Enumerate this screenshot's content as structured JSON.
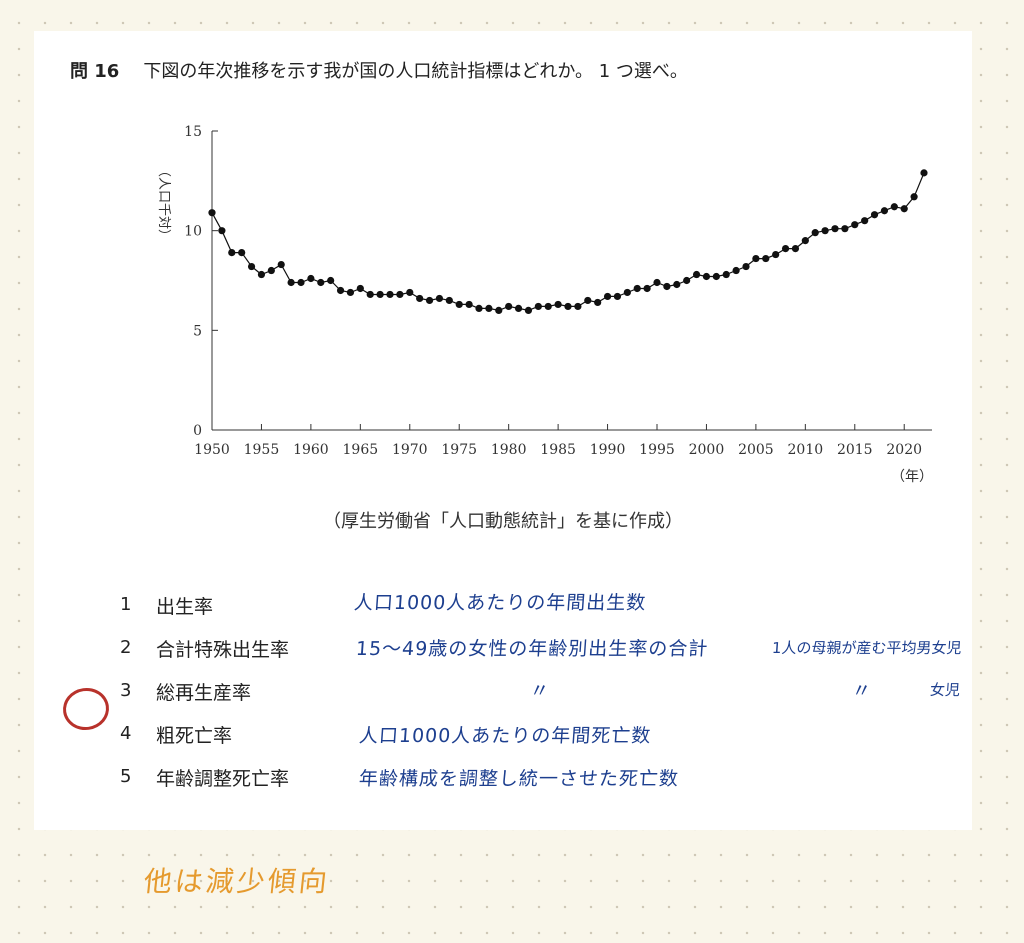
{
  "question": {
    "number": "問 16",
    "text": "下図の年次推移を示す我が国の人口統計指標はどれか。 1 つ選べ。"
  },
  "chart_data": {
    "type": "line",
    "ylabel": "（人口千対）",
    "xlabel": "（年）",
    "xlim": [
      1950,
      2022
    ],
    "ylim": [
      0,
      15
    ],
    "x_ticks": [
      1950,
      1955,
      1960,
      1965,
      1970,
      1975,
      1980,
      1985,
      1990,
      1995,
      2000,
      2005,
      2010,
      2015,
      2020
    ],
    "y_ticks": [
      0,
      5,
      10,
      15
    ],
    "markers": true,
    "grid": false,
    "x": [
      1950,
      1951,
      1952,
      1953,
      1954,
      1955,
      1956,
      1957,
      1958,
      1959,
      1960,
      1961,
      1962,
      1963,
      1964,
      1965,
      1966,
      1967,
      1968,
      1969,
      1970,
      1971,
      1972,
      1973,
      1974,
      1975,
      1976,
      1977,
      1978,
      1979,
      1980,
      1981,
      1982,
      1983,
      1984,
      1985,
      1986,
      1987,
      1988,
      1989,
      1990,
      1991,
      1992,
      1993,
      1994,
      1995,
      1996,
      1997,
      1998,
      1999,
      2000,
      2001,
      2002,
      2003,
      2004,
      2005,
      2006,
      2007,
      2008,
      2009,
      2010,
      2011,
      2012,
      2013,
      2014,
      2015,
      2016,
      2017,
      2018,
      2019,
      2020,
      2021,
      2022
    ],
    "y": [
      10.9,
      10.0,
      8.9,
      8.9,
      8.2,
      7.8,
      8.0,
      8.3,
      7.4,
      7.4,
      7.6,
      7.4,
      7.5,
      7.0,
      6.9,
      7.1,
      6.8,
      6.8,
      6.8,
      6.8,
      6.9,
      6.6,
      6.5,
      6.6,
      6.5,
      6.3,
      6.3,
      6.1,
      6.1,
      6.0,
      6.2,
      6.1,
      6.0,
      6.2,
      6.2,
      6.3,
      6.2,
      6.2,
      6.5,
      6.4,
      6.7,
      6.7,
      6.9,
      7.1,
      7.1,
      7.4,
      7.2,
      7.3,
      7.5,
      7.8,
      7.7,
      7.7,
      7.8,
      8.0,
      8.2,
      8.6,
      8.6,
      8.8,
      9.1,
      9.1,
      9.5,
      9.9,
      10.0,
      10.1,
      10.1,
      10.3,
      10.5,
      10.8,
      11.0,
      11.2,
      11.1,
      11.7,
      12.9
    ]
  },
  "source": "（厚生労働省「人口動態統計」を基に作成）",
  "options": [
    {
      "num": "1",
      "label": "出生率"
    },
    {
      "num": "2",
      "label": "合計特殊出生率"
    },
    {
      "num": "3",
      "label": "総再生産率"
    },
    {
      "num": "4",
      "label": "粗死亡率"
    },
    {
      "num": "5",
      "label": "年齢調整死亡率"
    }
  ],
  "notes": {
    "n1": "人口1000人あたりの年間出生数",
    "n2a": "15～49歳の女性の年齢別出生率の合計",
    "n2b": "1人の母親が産む平均男女児",
    "n3a": "〃",
    "n3b": "〃",
    "n3c": "女児",
    "n4": "人口1000人あたりの年間死亡数",
    "n5": "年齢構成を調整し統一させた死亡数",
    "bottom": "他は減少傾向"
  },
  "colors": {
    "note_blue": "#1d3f8f",
    "answer_circle": "#b8322b",
    "orange_note": "#e59a2e"
  }
}
